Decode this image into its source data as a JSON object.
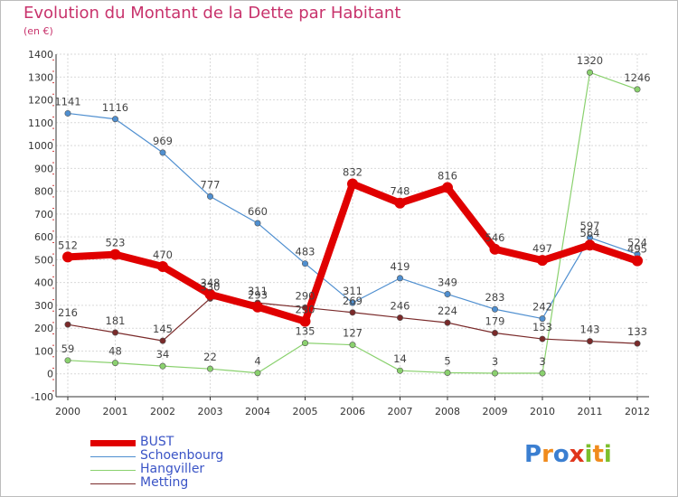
{
  "title": "Evolution du Montant de la Dette par Habitant",
  "unit": "(en €)",
  "logo": [
    "P",
    "r",
    "o",
    "x",
    "i",
    "t",
    "i"
  ],
  "logo_colors": [
    "#3b7fd1",
    "#f08b1d",
    "#3b7fd1",
    "#e0361c",
    "#7cbf2c",
    "#f08b1d",
    "#7cbf2c"
  ],
  "chart_data": {
    "type": "line",
    "x": [
      "2000",
      "2001",
      "2002",
      "2003",
      "2004",
      "2005",
      "2006",
      "2007",
      "2008",
      "2009",
      "2010",
      "2011",
      "2012"
    ],
    "ylim": [
      -100,
      1400
    ],
    "yticks": [
      "-100",
      "0",
      "100",
      "200",
      "300",
      "400",
      "500",
      "600",
      "700",
      "800",
      "900",
      "1000",
      "1100",
      "1200",
      "1300",
      "1400"
    ],
    "grid": true,
    "legend_position": "bottom-left",
    "series": [
      {
        "name": "BUST",
        "color": "#e00000",
        "values": [
          512,
          523,
          470,
          348,
          293,
          230,
          832,
          748,
          816,
          546,
          497,
          564,
          495
        ]
      },
      {
        "name": "Schoenbourg",
        "color": "#4f8fd0",
        "values": [
          1141,
          1116,
          969,
          777,
          660,
          483,
          311,
          419,
          349,
          283,
          242,
          597,
          524
        ]
      },
      {
        "name": "Hangviller",
        "color": "#8ad16e",
        "values": [
          59,
          48,
          34,
          22,
          4,
          135,
          127,
          14,
          5,
          3,
          3,
          1320,
          1246
        ]
      },
      {
        "name": "Metting",
        "color": "#7a2a2a",
        "values": [
          216,
          181,
          145,
          330,
          311,
          290,
          269,
          246,
          224,
          179,
          153,
          143,
          133
        ]
      }
    ]
  }
}
